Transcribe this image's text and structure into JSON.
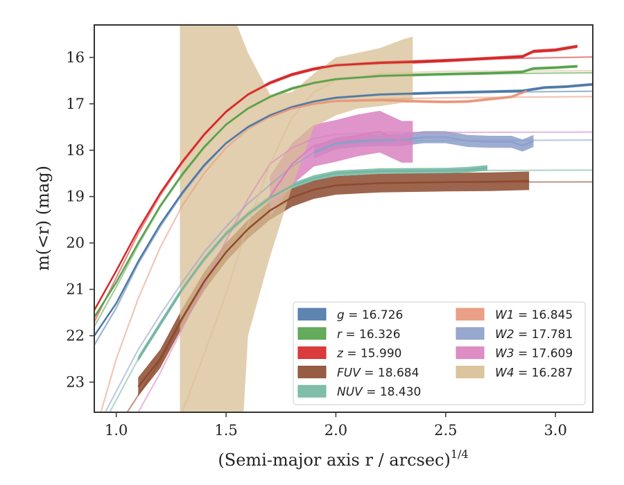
{
  "chart_data": {
    "type": "line",
    "xlabel": "(Semi-major axis r / arcsec)",
    "xlabel_exponent": "1/4",
    "ylabel": "m(<r) (mag)",
    "xlim": [
      0.9,
      3.17
    ],
    "ylim": [
      23.65,
      15.3
    ],
    "y_inverted": true,
    "x_ticks": [
      "1.0",
      "1.5",
      "2.0",
      "2.5",
      "3.0"
    ],
    "y_ticks": [
      "16",
      "17",
      "18",
      "19",
      "20",
      "21",
      "22",
      "23"
    ],
    "grid": false,
    "legend_placement": "lower-right",
    "legend": [
      {
        "band": "g",
        "value": "16.726"
      },
      {
        "band": "r",
        "value": "16.326"
      },
      {
        "band": "z",
        "value": "15.990"
      },
      {
        "band": "FUV",
        "value": "18.684"
      },
      {
        "band": "NUV",
        "value": "18.430"
      },
      {
        "band": "W1",
        "value": "16.845"
      },
      {
        "band": "W2",
        "value": "17.781"
      },
      {
        "band": "W3",
        "value": "17.609"
      },
      {
        "band": "W4",
        "value": "16.287"
      }
    ],
    "series": [
      {
        "name": "g = 16.726",
        "color": "#4c78a8",
        "total": 16.726,
        "fit": [
          [
            0.9,
            22.2
          ],
          [
            1.0,
            21.4
          ],
          [
            1.1,
            20.45
          ],
          [
            1.2,
            19.65
          ],
          [
            1.3,
            18.95
          ],
          [
            1.4,
            18.35
          ],
          [
            1.5,
            17.85
          ],
          [
            1.6,
            17.5
          ],
          [
            1.7,
            17.25
          ],
          [
            1.8,
            17.07
          ],
          [
            1.9,
            16.95
          ],
          [
            2.0,
            16.87
          ],
          [
            2.2,
            16.8
          ],
          [
            2.5,
            16.76
          ],
          [
            3.17,
            16.73
          ]
        ],
        "data": [
          [
            0.9,
            22.0
          ],
          [
            1.0,
            21.3
          ],
          [
            1.1,
            20.4
          ],
          [
            1.2,
            19.6
          ],
          [
            1.3,
            18.92
          ],
          [
            1.4,
            18.32
          ],
          [
            1.5,
            17.85
          ],
          [
            1.6,
            17.5
          ],
          [
            1.7,
            17.25
          ],
          [
            1.8,
            17.07
          ],
          [
            1.9,
            16.95
          ],
          [
            2.0,
            16.87
          ],
          [
            2.2,
            16.8
          ],
          [
            2.35,
            16.78
          ],
          [
            2.5,
            16.76
          ],
          [
            2.7,
            16.74
          ],
          [
            2.85,
            16.72
          ],
          [
            2.95,
            16.65
          ],
          [
            3.05,
            16.63
          ],
          [
            3.17,
            16.58
          ]
        ],
        "band_halfwidth": 0.03
      },
      {
        "name": "r = 16.326",
        "color": "#54a24b",
        "total": 16.326,
        "fit": [
          [
            0.9,
            21.8
          ],
          [
            1.0,
            20.95
          ],
          [
            1.1,
            20.05
          ],
          [
            1.2,
            19.23
          ],
          [
            1.3,
            18.55
          ],
          [
            1.4,
            17.95
          ],
          [
            1.5,
            17.45
          ],
          [
            1.6,
            17.1
          ],
          [
            1.7,
            16.85
          ],
          [
            1.8,
            16.67
          ],
          [
            1.9,
            16.55
          ],
          [
            2.0,
            16.47
          ],
          [
            2.2,
            16.4
          ],
          [
            2.5,
            16.36
          ],
          [
            3.17,
            16.33
          ]
        ],
        "data": [
          [
            0.9,
            21.6
          ],
          [
            1.0,
            20.85
          ],
          [
            1.1,
            20.0
          ],
          [
            1.2,
            19.2
          ],
          [
            1.3,
            18.52
          ],
          [
            1.4,
            17.93
          ],
          [
            1.5,
            17.45
          ],
          [
            1.6,
            17.1
          ],
          [
            1.7,
            16.85
          ],
          [
            1.8,
            16.67
          ],
          [
            1.9,
            16.55
          ],
          [
            2.0,
            16.47
          ],
          [
            2.2,
            16.4
          ],
          [
            2.35,
            16.38
          ],
          [
            2.5,
            16.36
          ],
          [
            2.7,
            16.34
          ],
          [
            2.85,
            16.31
          ],
          [
            2.9,
            16.24
          ],
          [
            3.0,
            16.22
          ],
          [
            3.1,
            16.19
          ]
        ],
        "band_halfwidth": 0.03
      },
      {
        "name": "z = 15.990",
        "color": "#d62728",
        "total": 15.99,
        "fit": [
          [
            0.9,
            21.7
          ],
          [
            1.0,
            20.75
          ],
          [
            1.1,
            19.8
          ],
          [
            1.2,
            18.98
          ],
          [
            1.3,
            18.28
          ],
          [
            1.4,
            17.68
          ],
          [
            1.5,
            17.18
          ],
          [
            1.6,
            16.8
          ],
          [
            1.7,
            16.55
          ],
          [
            1.8,
            16.37
          ],
          [
            1.9,
            16.25
          ],
          [
            2.0,
            16.17
          ],
          [
            2.2,
            16.1
          ],
          [
            2.5,
            16.05
          ],
          [
            3.17,
            15.99
          ]
        ],
        "data": [
          [
            0.9,
            21.45
          ],
          [
            1.0,
            20.6
          ],
          [
            1.1,
            19.72
          ],
          [
            1.2,
            18.93
          ],
          [
            1.3,
            18.25
          ],
          [
            1.4,
            17.66
          ],
          [
            1.5,
            17.17
          ],
          [
            1.6,
            16.8
          ],
          [
            1.7,
            16.55
          ],
          [
            1.8,
            16.37
          ],
          [
            1.9,
            16.25
          ],
          [
            2.0,
            16.17
          ],
          [
            2.2,
            16.12
          ],
          [
            2.35,
            16.1
          ],
          [
            2.5,
            16.07
          ],
          [
            2.7,
            16.02
          ],
          [
            2.85,
            15.98
          ],
          [
            2.9,
            15.87
          ],
          [
            3.0,
            15.84
          ],
          [
            3.1,
            15.76
          ]
        ],
        "band_halfwidth": 0.035
      },
      {
        "name": "FUV = 18.684",
        "color": "#8c4a2f",
        "total": 18.684,
        "fit": [
          [
            1.05,
            23.65
          ],
          [
            1.2,
            22.55
          ],
          [
            1.3,
            21.65
          ],
          [
            1.4,
            20.85
          ],
          [
            1.5,
            20.2
          ],
          [
            1.6,
            19.7
          ],
          [
            1.7,
            19.3
          ],
          [
            1.8,
            19.02
          ],
          [
            1.9,
            18.85
          ],
          [
            2.0,
            18.76
          ],
          [
            2.2,
            18.71
          ],
          [
            2.5,
            18.69
          ],
          [
            3.17,
            18.684
          ]
        ],
        "data": [
          [
            1.1,
            23.1
          ],
          [
            1.2,
            22.5
          ],
          [
            1.3,
            21.62
          ],
          [
            1.4,
            20.83
          ],
          [
            1.5,
            20.2
          ],
          [
            1.6,
            19.7
          ],
          [
            1.7,
            19.3
          ],
          [
            1.8,
            19.02
          ],
          [
            1.9,
            18.85
          ],
          [
            2.0,
            18.76
          ],
          [
            2.2,
            18.71
          ],
          [
            2.5,
            18.69
          ],
          [
            2.7,
            18.68
          ],
          [
            2.88,
            18.66
          ]
        ],
        "band_halfwidth": 0.2
      },
      {
        "name": "NUV = 18.430",
        "color": "#72b7a1",
        "total": 18.43,
        "fit": [
          [
            0.97,
            23.65
          ],
          [
            1.1,
            22.5
          ],
          [
            1.2,
            21.75
          ],
          [
            1.3,
            21.0
          ],
          [
            1.4,
            20.35
          ],
          [
            1.5,
            19.8
          ],
          [
            1.6,
            19.38
          ],
          [
            1.7,
            19.03
          ],
          [
            1.8,
            18.77
          ],
          [
            1.9,
            18.6
          ],
          [
            2.0,
            18.5
          ],
          [
            2.2,
            18.45
          ],
          [
            2.5,
            18.44
          ],
          [
            3.17,
            18.43
          ]
        ],
        "data": [
          [
            1.1,
            22.5
          ],
          [
            1.2,
            21.75
          ],
          [
            1.3,
            21.0
          ],
          [
            1.4,
            20.35
          ],
          [
            1.5,
            19.8
          ],
          [
            1.6,
            19.38
          ],
          [
            1.7,
            19.03
          ],
          [
            1.8,
            18.77
          ],
          [
            1.9,
            18.6
          ],
          [
            2.0,
            18.5
          ],
          [
            2.2,
            18.45
          ],
          [
            2.5,
            18.44
          ],
          [
            2.6,
            18.42
          ],
          [
            2.69,
            18.38
          ]
        ],
        "band_halfwidth": 0.06
      },
      {
        "name": "W1 = 16.845",
        "color": "#e8967a",
        "total": 16.845,
        "fit": [
          [
            0.93,
            23.65
          ],
          [
            1.0,
            22.5
          ],
          [
            1.1,
            21.2
          ],
          [
            1.2,
            20.1
          ],
          [
            1.3,
            19.2
          ],
          [
            1.4,
            18.5
          ],
          [
            1.5,
            17.95
          ],
          [
            1.6,
            17.55
          ],
          [
            1.7,
            17.28
          ],
          [
            1.8,
            17.1
          ],
          [
            1.9,
            17.0
          ],
          [
            2.0,
            16.94
          ],
          [
            2.2,
            16.9
          ],
          [
            2.5,
            16.87
          ],
          [
            3.17,
            16.845
          ]
        ],
        "data": [
          [
            1.7,
            17.28
          ],
          [
            1.8,
            17.1
          ],
          [
            1.9,
            17.0
          ],
          [
            2.0,
            16.94
          ],
          [
            2.2,
            16.92
          ],
          [
            2.4,
            16.95
          ],
          [
            2.5,
            16.96
          ],
          [
            2.6,
            16.95
          ],
          [
            2.7,
            16.9
          ],
          [
            2.8,
            16.85
          ],
          [
            2.87,
            16.72
          ]
        ],
        "band_halfwidth": 0.03
      },
      {
        "name": "W2 = 17.781",
        "color": "#8c9fca",
        "total": 17.781,
        "fit": [
          [
            0.95,
            23.65
          ],
          [
            1.0,
            23.2
          ],
          [
            1.1,
            22.3
          ],
          [
            1.2,
            21.55
          ],
          [
            1.3,
            20.85
          ],
          [
            1.4,
            20.2
          ],
          [
            1.5,
            19.65
          ],
          [
            1.6,
            19.15
          ],
          [
            1.7,
            18.75
          ],
          [
            1.8,
            18.35
          ],
          [
            1.9,
            18.05
          ],
          [
            2.0,
            17.87
          ],
          [
            2.2,
            17.8
          ],
          [
            3.17,
            17.781
          ]
        ],
        "data": [
          [
            1.9,
            18.05
          ],
          [
            2.0,
            17.85
          ],
          [
            2.1,
            17.8
          ],
          [
            2.2,
            17.78
          ],
          [
            2.3,
            17.78
          ],
          [
            2.4,
            17.72
          ],
          [
            2.5,
            17.72
          ],
          [
            2.6,
            17.8
          ],
          [
            2.7,
            17.82
          ],
          [
            2.8,
            17.82
          ],
          [
            2.85,
            17.9
          ],
          [
            2.9,
            17.8
          ]
        ],
        "band_halfwidth": 0.13
      },
      {
        "name": "W3 = 17.609",
        "color": "#d982bf",
        "total": 17.609,
        "fit": [
          [
            1.1,
            23.65
          ],
          [
            1.2,
            22.8
          ],
          [
            1.3,
            21.85
          ],
          [
            1.4,
            20.9
          ],
          [
            1.5,
            19.95
          ],
          [
            1.6,
            19.05
          ],
          [
            1.7,
            18.3
          ],
          [
            1.8,
            17.95
          ],
          [
            1.9,
            17.75
          ],
          [
            2.0,
            17.66
          ],
          [
            2.2,
            17.62
          ],
          [
            3.17,
            17.609
          ]
        ],
        "data": [
          [
            1.7,
            19.0
          ],
          [
            1.8,
            18.3
          ],
          [
            1.9,
            17.9
          ],
          [
            2.0,
            17.8
          ],
          [
            2.1,
            17.68
          ],
          [
            2.2,
            17.6
          ],
          [
            2.3,
            17.82
          ],
          [
            2.35,
            17.82
          ]
        ],
        "band_halfwidth": 0.45
      },
      {
        "name": "W4 = 16.287",
        "color": "#d8bf94",
        "total": 16.287,
        "fit": [
          [
            1.3,
            23.65
          ],
          [
            1.4,
            22.4
          ],
          [
            1.5,
            21.1
          ],
          [
            1.6,
            19.6
          ],
          [
            1.7,
            18.3
          ],
          [
            1.8,
            17.3
          ],
          [
            1.9,
            16.75
          ],
          [
            2.0,
            16.5
          ],
          [
            2.2,
            16.35
          ],
          [
            2.5,
            16.3
          ],
          [
            3.17,
            16.287
          ]
        ],
        "band_upper": [
          [
            1.29,
            15.3
          ],
          [
            1.55,
            15.3
          ],
          [
            1.6,
            15.9
          ],
          [
            1.7,
            16.8
          ],
          [
            1.8,
            16.75
          ],
          [
            1.9,
            16.35
          ],
          [
            2.0,
            16.0
          ],
          [
            2.1,
            15.9
          ],
          [
            2.2,
            15.8
          ],
          [
            2.3,
            15.62
          ],
          [
            2.35,
            15.55
          ]
        ],
        "band_lower": [
          [
            1.29,
            23.65
          ],
          [
            1.58,
            23.65
          ],
          [
            1.6,
            22.0
          ],
          [
            1.7,
            20.3
          ],
          [
            1.8,
            18.8
          ],
          [
            1.9,
            17.5
          ],
          [
            2.0,
            17.25
          ],
          [
            2.1,
            17.1
          ],
          [
            2.2,
            17.05
          ],
          [
            2.3,
            16.98
          ],
          [
            2.35,
            16.98
          ]
        ]
      }
    ]
  }
}
